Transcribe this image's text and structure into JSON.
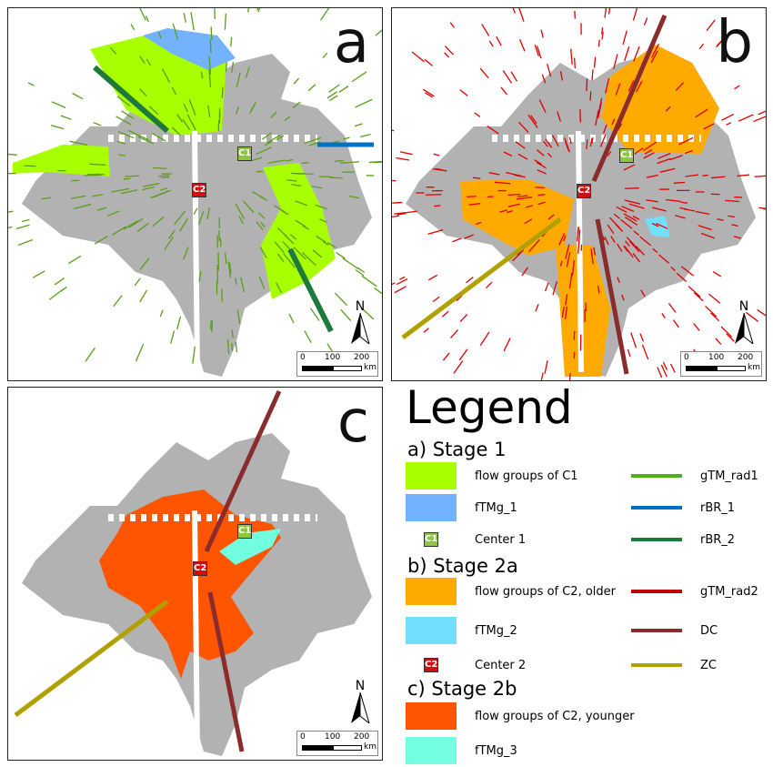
{
  "panels": [
    {
      "label": "a",
      "c1": "C1",
      "c2": "C2"
    },
    {
      "label": "b",
      "c1": "C1",
      "c2": "C2"
    },
    {
      "label": "c",
      "c1": "C1",
      "c2": "C2"
    }
  ],
  "north_label": "N",
  "scale": {
    "ticks": [
      "0",
      "100",
      "200"
    ],
    "unit": "km"
  },
  "legend": {
    "title": "Legend",
    "stages": [
      {
        "title": "a) Stage 1",
        "items": [
          {
            "label": "flow groups of C1",
            "type": "fill",
            "color": "#a8ff00"
          },
          {
            "label": "fTMg_1",
            "type": "fill",
            "color": "#73b2ff"
          },
          {
            "label": "Center 1",
            "type": "marker",
            "marker": "C1",
            "color": "#8ec63f"
          }
        ],
        "lines": [
          {
            "label": "gTM_rad1",
            "color": "#4caf1a"
          },
          {
            "label": "rBR_1",
            "color": "#0070c0"
          },
          {
            "label": "rBR_2",
            "color": "#1e7a3c"
          }
        ]
      },
      {
        "title": "b) Stage 2a",
        "items": [
          {
            "label": "flow groups of C2, older",
            "type": "fill",
            "color": "#ffaa00"
          },
          {
            "label": "fTMg_2",
            "type": "fill",
            "color": "#73dfff"
          },
          {
            "label": "Center 2",
            "type": "marker",
            "marker": "C2",
            "color": "#d10f0f"
          }
        ],
        "lines": [
          {
            "label": "gTM_rad2",
            "color": "#c00000"
          },
          {
            "label": "DC",
            "color": "#8b2c2c"
          },
          {
            "label": "ZC",
            "color": "#b0a000"
          }
        ]
      },
      {
        "title": "c) Stage 2b",
        "items": [
          {
            "label": "flow groups of C2, younger",
            "type": "fill",
            "color": "#ff5500"
          },
          {
            "label": "fTMg_3",
            "type": "fill",
            "color": "#73ffdf"
          }
        ],
        "lines": []
      }
    ]
  }
}
